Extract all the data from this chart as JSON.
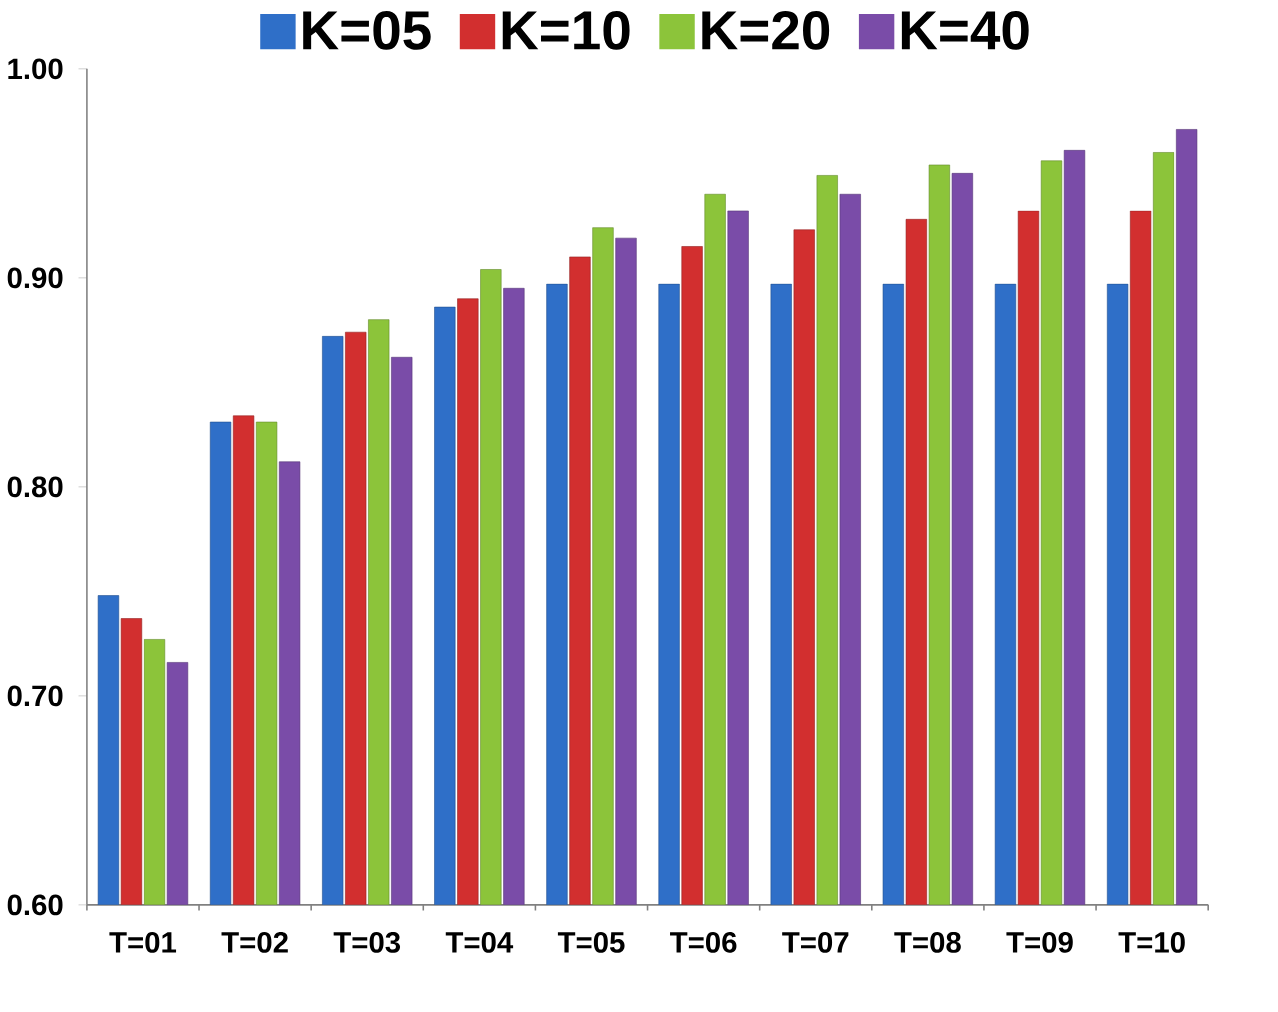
{
  "chart_data": {
    "type": "bar",
    "categories": [
      "T=01",
      "T=02",
      "T=03",
      "T=04",
      "T=05",
      "T=06",
      "T=07",
      "T=08",
      "T=09",
      "T=10"
    ],
    "series": [
      {
        "name": "K=05",
        "color": "#2f6fc8",
        "values": [
          0.748,
          0.831,
          0.872,
          0.886,
          0.897,
          0.897,
          0.897,
          0.897,
          0.897,
          0.897
        ]
      },
      {
        "name": "K=10",
        "color": "#d22f2f",
        "values": [
          0.737,
          0.834,
          0.874,
          0.89,
          0.91,
          0.915,
          0.923,
          0.928,
          0.932,
          0.932
        ]
      },
      {
        "name": "K=20",
        "color": "#8cc43a",
        "values": [
          0.727,
          0.831,
          0.88,
          0.904,
          0.924,
          0.94,
          0.949,
          0.954,
          0.956,
          0.96
        ]
      },
      {
        "name": "K=40",
        "color": "#7a4ca8",
        "values": [
          0.716,
          0.812,
          0.862,
          0.895,
          0.919,
          0.932,
          0.94,
          0.95,
          0.961,
          0.971
        ]
      }
    ],
    "ylim": [
      0.6,
      1.0
    ],
    "yticks": [
      {
        "value": 0.6,
        "label": "0.60"
      },
      {
        "value": 0.7,
        "label": "0.70"
      },
      {
        "value": 0.8,
        "label": "0.80"
      },
      {
        "value": 0.9,
        "label": "0.90"
      },
      {
        "value": 1.0,
        "label": "1.00"
      }
    ],
    "grid": false,
    "legend": "top"
  }
}
